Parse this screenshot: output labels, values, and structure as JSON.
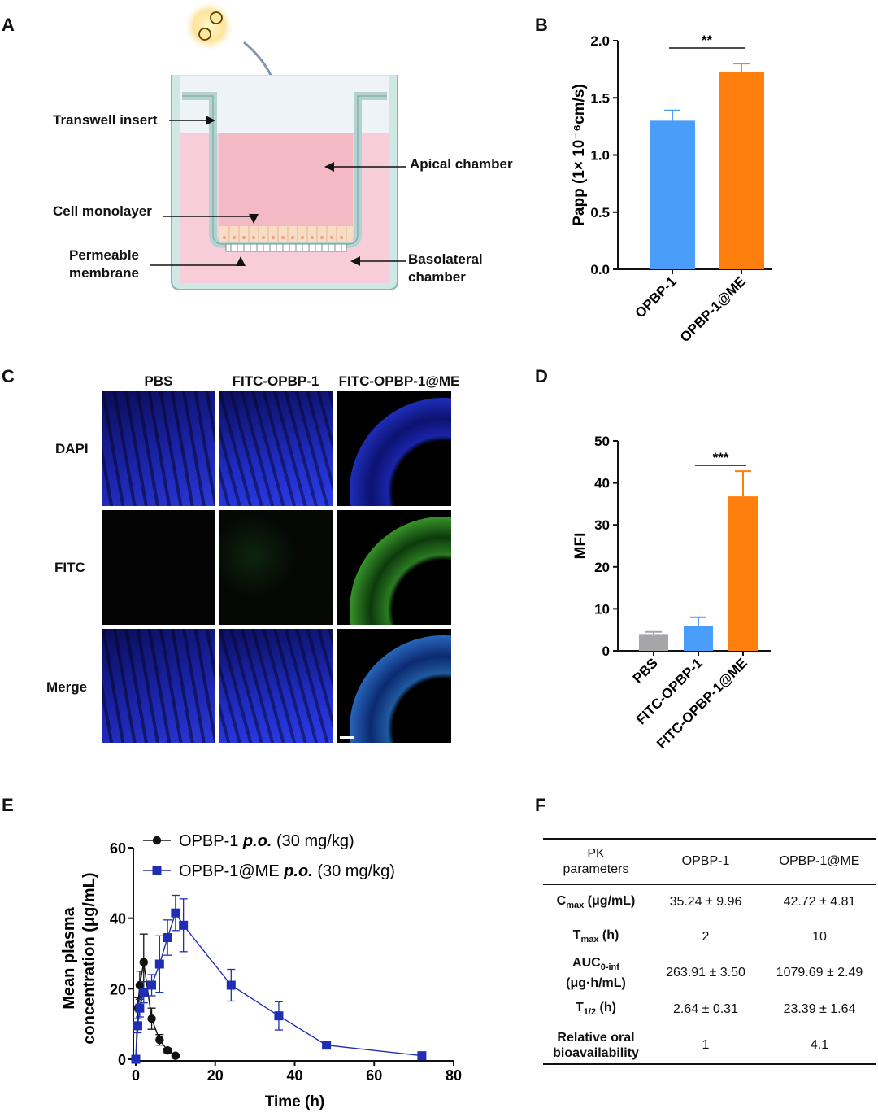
{
  "panels": {
    "a": "A",
    "b": "B",
    "c": "C",
    "d": "D",
    "e": "E",
    "f": "F"
  },
  "panel_a": {
    "transwell_insert": "Transwell insert",
    "apical_chamber": "Apical chamber",
    "cell_monolayer": "Cell monolayer",
    "permeable_membrane_1": "Permeable",
    "permeable_membrane_2": "membrane",
    "basolateral_1": "Basolateral",
    "basolateral_2": "chamber"
  },
  "panel_c": {
    "cols": [
      "PBS",
      "FITC-OPBP-1",
      "FITC-OPBP-1@ME"
    ],
    "rows": [
      "DAPI",
      "FITC",
      "Merge"
    ]
  },
  "chart_data": [
    {
      "id": "B",
      "type": "bar",
      "categories": [
        "OPBP-1",
        "OPBP-1@ME"
      ],
      "values": [
        1.3,
        1.73
      ],
      "errors": [
        0.09,
        0.07
      ],
      "colors": [
        "#4a9df8",
        "#ff7f0e"
      ],
      "ylabel": "Papp (1× 10⁻⁶cm/s)",
      "ylim": [
        0,
        2.0
      ],
      "yticks": [
        "0.0",
        "0.5",
        "1.0",
        "1.5",
        "2.0"
      ],
      "significance": "**"
    },
    {
      "id": "D",
      "type": "bar",
      "categories": [
        "PBS",
        "FITC-OPBP-1",
        "FITC-OPBP-1@ME"
      ],
      "values": [
        4.0,
        6.0,
        36.8
      ],
      "errors": [
        0.5,
        2.0,
        6.0
      ],
      "colors": [
        "#a6a6aa",
        "#4a9df8",
        "#ff7f0e"
      ],
      "ylabel": "MFI",
      "ylim": [
        0,
        50
      ],
      "yticks": [
        "0",
        "10",
        "20",
        "30",
        "40",
        "50"
      ],
      "significance": "***"
    },
    {
      "id": "E",
      "type": "line",
      "xlabel": "Time (h)",
      "ylabel_1": "Mean plasma",
      "ylabel_2": "concentration (μg/mL)",
      "xlim": [
        0,
        80
      ],
      "ylim": [
        0,
        60
      ],
      "xticks": [
        "0",
        "20",
        "40",
        "60",
        "80"
      ],
      "yticks": [
        "0",
        "20",
        "40",
        "60"
      ],
      "series": [
        {
          "name": "OPBP-1",
          "legend_drug": "OPBP-1",
          "legend_route": "p.o.",
          "legend_dose": "(30 mg/kg)",
          "color": "#111111",
          "marker": "circle",
          "x": [
            0,
            0.5,
            1,
            2,
            4,
            6,
            8,
            10
          ],
          "y": [
            0,
            14.5,
            21,
            27.5,
            11.5,
            5.5,
            2.5,
            1.0
          ],
          "err": [
            0,
            3,
            4,
            8,
            3,
            1.5,
            0.6,
            0.3
          ]
        },
        {
          "name": "OPBP-1@ME",
          "legend_drug": "OPBP-1@ME",
          "legend_route": "p.o.",
          "legend_dose": "(30 mg/kg)",
          "color": "#1f2eb5",
          "marker": "square",
          "x": [
            0,
            0.5,
            1,
            2,
            4,
            6,
            8,
            10,
            12,
            24,
            36,
            48,
            72
          ],
          "y": [
            0,
            9.5,
            14.5,
            19,
            21,
            27,
            34.5,
            41.5,
            38,
            21,
            12.3,
            4.0,
            1.0
          ],
          "err": [
            0,
            2,
            2.5,
            3,
            3,
            8,
            5,
            5,
            7.5,
            4.5,
            4,
            0.8,
            0.3
          ]
        }
      ]
    }
  ],
  "panel_f": {
    "header": {
      "param_1": "PK",
      "param_2": "parameters",
      "col1": "OPBP-1",
      "col2": "OPBP-1@ME"
    },
    "rows": [
      {
        "label": "C",
        "sub": "max",
        "unit": " (μg/mL)",
        "label2": "",
        "v1": "35.24 ± 9.96",
        "v2": "42.72 ± 4.81"
      },
      {
        "label": "T",
        "sub": "max",
        "unit": " (h)",
        "label2": "",
        "v1": "2",
        "v2": "10"
      },
      {
        "label": "AUC",
        "sub": "0-inf",
        "unit": "",
        "label2": "(μg·h/mL)",
        "v1": "263.91 ± 3.50",
        "v2": "1079.69 ± 2.49"
      },
      {
        "label": "T",
        "sub": "1/2",
        "unit": " (h)",
        "label2": "",
        "v1": "2.64 ± 0.31",
        "v2": "23.39 ± 1.64"
      },
      {
        "label": "Relative oral",
        "sub": "",
        "unit": "",
        "label2": "bioavailability",
        "v1": "1",
        "v2": "4.1"
      }
    ]
  }
}
